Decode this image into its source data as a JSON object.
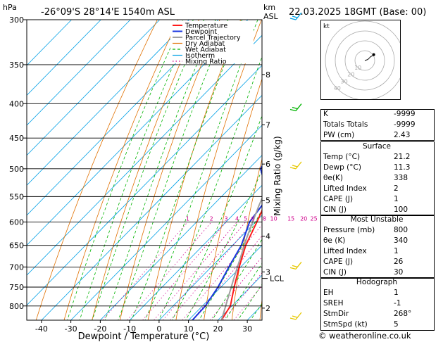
{
  "header": {
    "location": "-26°09'S  28°14'E  1540m  ASL",
    "datetime": "22.03.2025  18GMT  (Base: 00)"
  },
  "chart_data": {
    "type": "line",
    "title": "-26°09'S  28°14'E  1540m  ASL",
    "xlabel": "Dewpoint / Temperature (°C)",
    "ylabel": "hPa",
    "y_right_label": "km ASL",
    "mixing_ratio_label": "Mixing Ratio (g/kg)",
    "xlim": [
      -45,
      35
    ],
    "ylim": [
      840,
      300
    ],
    "x_ticks": [
      -40,
      -30,
      -20,
      -10,
      0,
      10,
      20,
      30
    ],
    "pressure_ticks": [
      300,
      350,
      400,
      450,
      500,
      550,
      600,
      650,
      700,
      750,
      800
    ],
    "km_ticks": [
      {
        "label": "8",
        "p": 362
      },
      {
        "label": "7",
        "p": 430
      },
      {
        "label": "6",
        "p": 492
      },
      {
        "label": "5",
        "p": 557
      },
      {
        "label": "4",
        "p": 630
      },
      {
        "label": "3",
        "p": 712
      },
      {
        "label": "2",
        "p": 806
      }
    ],
    "lcl": {
      "label": "LCL",
      "p": 728
    },
    "mixing_ratio_values": [
      "1",
      "2",
      "3",
      "4",
      "5",
      "6",
      "8",
      "10",
      "15",
      "20",
      "25"
    ],
    "legend": [
      "Temperature",
      "Dewpoint",
      "Parcel Trajectory",
      "Dry Adiabat",
      "Wet Adiabat",
      "Isotherm",
      "Mixing Ratio"
    ],
    "colors": {
      "temperature": "#ff1a1a",
      "dewpoint": "#1a35e0",
      "parcel": "#a0a0a0",
      "dry_adiabat": "#e07000",
      "wet_adiabat": "#00b400",
      "isotherm": "#00a0e6",
      "mixing_ratio": "#d0008c"
    },
    "series": [
      {
        "name": "Temperature",
        "points": [
          [
            21.2,
            840
          ],
          [
            19.5,
            800
          ],
          [
            14.5,
            750
          ],
          [
            9.5,
            700
          ],
          [
            4.5,
            650
          ],
          [
            0.5,
            600
          ],
          [
            -4,
            550
          ],
          [
            -6,
            500
          ],
          [
            -12,
            450
          ],
          [
            -18,
            400
          ],
          [
            -24,
            350
          ],
          [
            -29,
            300
          ]
        ]
      },
      {
        "name": "Dewpoint",
        "points": [
          [
            11.3,
            840
          ],
          [
            11,
            800
          ],
          [
            9,
            750
          ],
          [
            6,
            700
          ],
          [
            3,
            650
          ],
          [
            -2,
            600
          ],
          [
            -4,
            550
          ],
          [
            -16,
            500
          ],
          [
            -20,
            450
          ],
          [
            -28,
            400
          ],
          [
            -47,
            350
          ],
          [
            -54,
            300
          ]
        ]
      },
      {
        "name": "Parcel Trajectory",
        "points": [
          [
            21.2,
            840
          ],
          [
            11.5,
            728
          ],
          [
            7,
            680
          ],
          [
            2,
            630
          ],
          [
            -4,
            570
          ],
          [
            -10,
            510
          ],
          [
            -17,
            450
          ],
          [
            -25,
            390
          ],
          [
            -34,
            330
          ],
          [
            -39,
            300
          ]
        ]
      }
    ]
  },
  "wind_barbs": [
    {
      "p": 300,
      "color": "#00a0e6"
    },
    {
      "p": 410,
      "color": "#00b400"
    },
    {
      "p": 500,
      "color": "#e6c800"
    },
    {
      "p": 705,
      "color": "#e6c800"
    },
    {
      "p": 838,
      "color": "#e6c800"
    }
  ],
  "hodograph": {
    "label": "kt",
    "ring_labels": [
      "10",
      "20",
      "30",
      "40"
    ],
    "trace": [
      [
        0,
        0
      ],
      [
        3,
        1
      ],
      [
        5,
        3
      ],
      [
        6,
        4
      ],
      [
        8,
        5
      ],
      [
        9,
        6
      ]
    ]
  },
  "indices": {
    "rows": [
      {
        "label": "K",
        "value": "-9999"
      },
      {
        "label": "Totals Totals",
        "value": "-9999"
      },
      {
        "label": "PW (cm)",
        "value": "2.43"
      }
    ]
  },
  "surface": {
    "title": "Surface",
    "rows": [
      {
        "label": "Temp (°C)",
        "value": "21.2"
      },
      {
        "label": "Dewp (°C)",
        "value": "11.3"
      },
      {
        "label": "θe(K)",
        "value": "338"
      },
      {
        "label": "Lifted Index",
        "value": "2"
      },
      {
        "label": "CAPE (J)",
        "value": "1"
      },
      {
        "label": "CIN (J)",
        "value": "100"
      }
    ]
  },
  "most_unstable": {
    "title": "Most Unstable",
    "rows": [
      {
        "label": "Pressure (mb)",
        "value": "800"
      },
      {
        "label": "θe (K)",
        "value": "340"
      },
      {
        "label": "Lifted Index",
        "value": "1"
      },
      {
        "label": "CAPE (J)",
        "value": "26"
      },
      {
        "label": "CIN (J)",
        "value": "30"
      }
    ]
  },
  "hodograph_table": {
    "title": "Hodograph",
    "rows": [
      {
        "label": "EH",
        "value": "1"
      },
      {
        "label": "SREH",
        "value": "-1"
      },
      {
        "label": "StmDir",
        "value": "268°"
      },
      {
        "label": "StmSpd (kt)",
        "value": "5"
      }
    ]
  },
  "credit": "© weatheronline.co.uk"
}
